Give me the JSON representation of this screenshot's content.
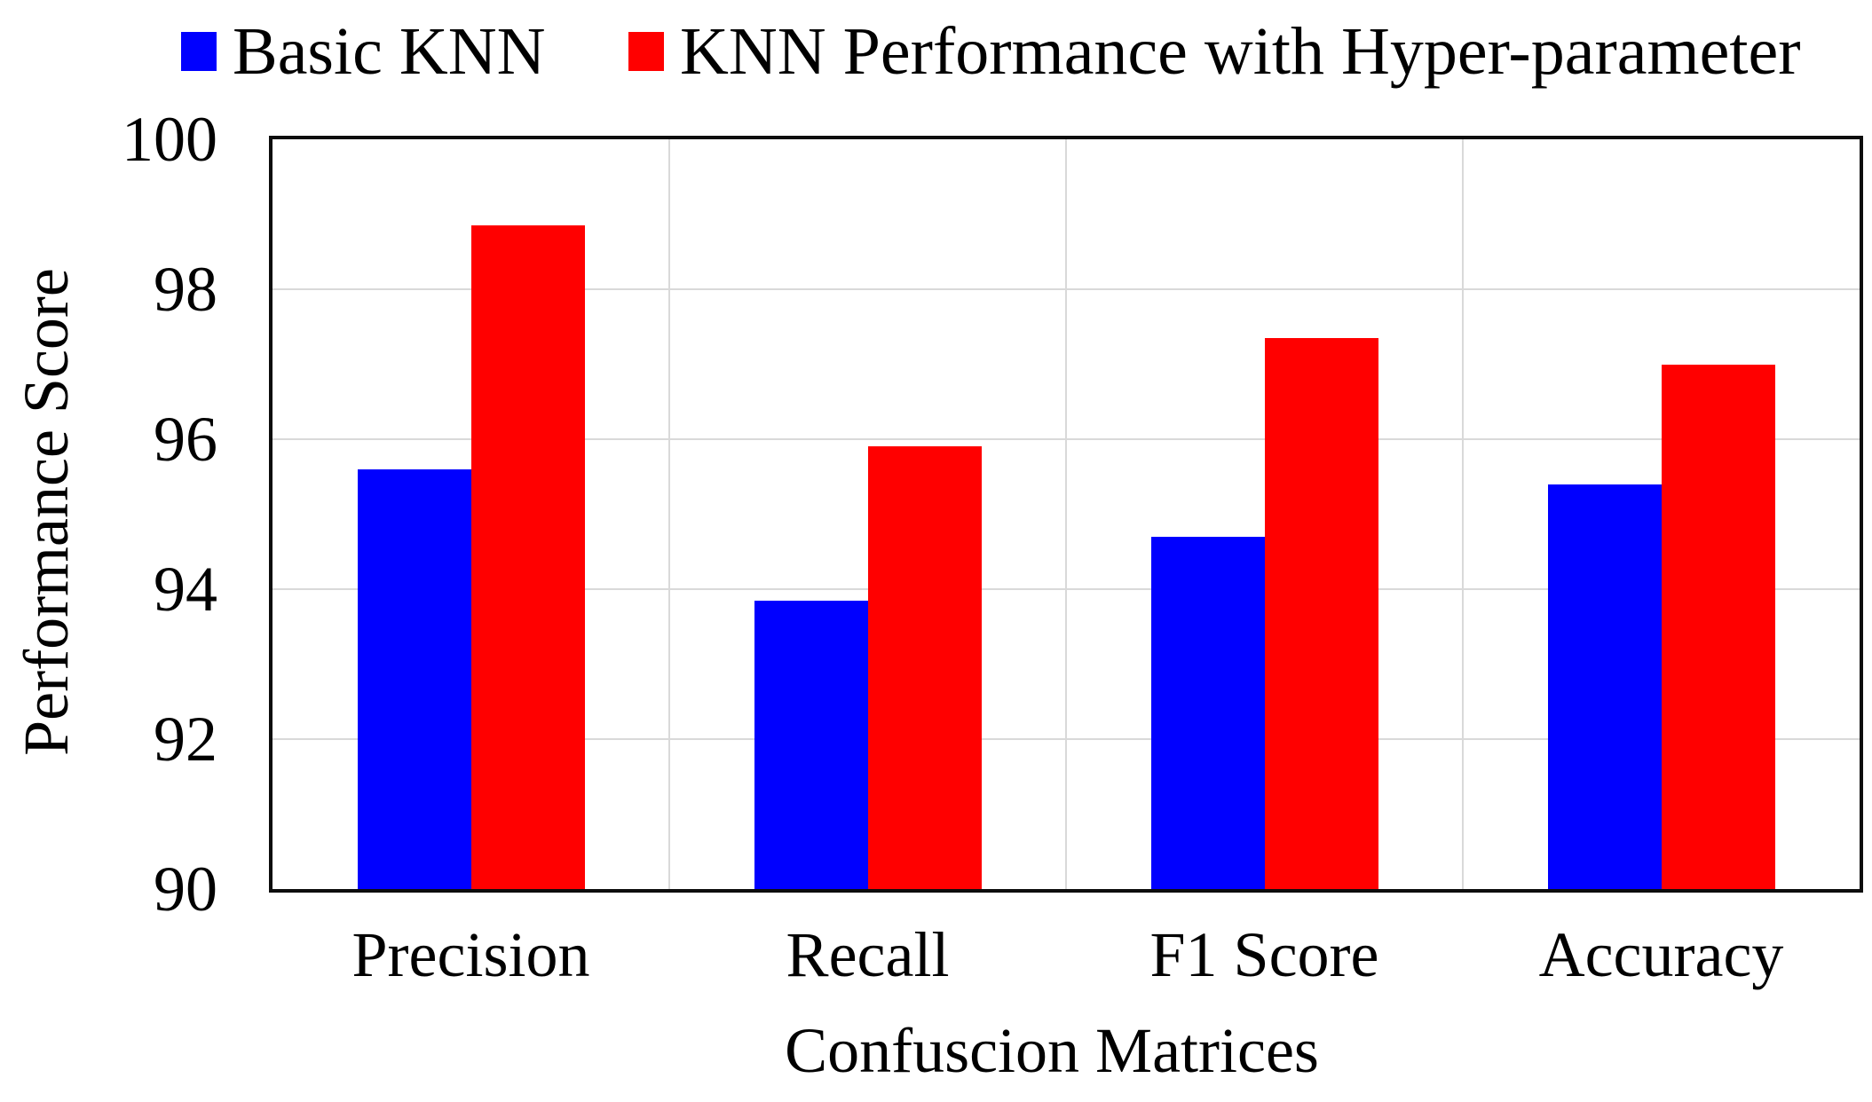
{
  "chart_data": {
    "type": "bar",
    "title": "",
    "xlabel": "Confuscion Matrices",
    "ylabel": "Performance Score",
    "ylim": [
      90,
      100
    ],
    "y_ticks": [
      90,
      92,
      94,
      96,
      98,
      100
    ],
    "grid": true,
    "legend_position": "top",
    "categories": [
      "Precision",
      "Recall",
      "F1 Score",
      "Accuracy"
    ],
    "series": [
      {
        "name": "Basic KNN",
        "color": "#0000FF",
        "values": [
          95.6,
          93.85,
          94.7,
          95.4
        ]
      },
      {
        "name": "KNN Performance with Hyper-parameter",
        "color": "#FF0000",
        "values": [
          98.85,
          95.9,
          97.35,
          97.0
        ]
      }
    ]
  },
  "colors": {
    "series_basic_knn": "#0000FF",
    "series_hyper_parameter": "#FF0000",
    "gridline": "#d9d9d9",
    "axis_frame": "#0d0d0d",
    "background": "#ffffff"
  }
}
